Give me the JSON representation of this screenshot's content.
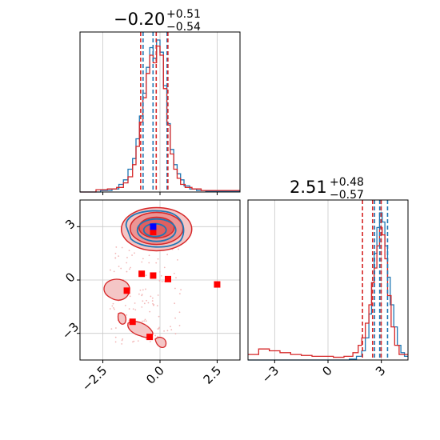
{
  "chart_data": {
    "type": "corner",
    "parameters": [
      "",
      ""
    ],
    "colors": {
      "series_a": "#1f77b4",
      "series_b": "#d62728",
      "marker_blue": "#0000ff",
      "marker_red": "#ff0000"
    },
    "series": [
      {
        "name": "",
        "color": "#1f77b4",
        "param1": {
          "median": -0.2,
          "q_low": -0.74,
          "q_high": 0.31
        },
        "param2": {
          "median": 2.91,
          "q_low": 2.62,
          "q_high": 3.35
        },
        "contour_center": [
          -0.15,
          2.85
        ]
      },
      {
        "name": "",
        "color": "#d62728",
        "param1": {
          "median": -0.2,
          "q_low": -0.74,
          "q_high": 0.31
        },
        "param2": {
          "median": 2.51,
          "q_low": 1.94,
          "q_high": 2.99
        },
        "contour_center": [
          -0.15,
          2.95
        ]
      }
    ],
    "titles": [
      {
        "value": "−0.20",
        "plus": "+0.51",
        "minus": "−0.54"
      },
      {
        "value": "2.51",
        "plus": "+0.48",
        "minus": "−0.57"
      }
    ],
    "x1_range": [
      -3.5,
      3.5
    ],
    "x2_range": [
      -4.5,
      4.5
    ],
    "y2_range": [
      -4.5,
      4.5
    ],
    "x1_ticks": [
      -2.5,
      0.0,
      2.5
    ],
    "x1_tick_labels": [
      "−2.5",
      "0.0",
      "2.5"
    ],
    "x2_ticks": [
      -3,
      0,
      3
    ],
    "x2_tick_labels": [
      "−3",
      "0",
      "3"
    ],
    "y2_ticks": [
      -3,
      0,
      3
    ],
    "y2_tick_labels": [
      "−3",
      "0",
      "3"
    ],
    "grid": true,
    "hist1_blue": [
      [
        -3.5,
        0
      ],
      [
        -2.6,
        0.01
      ],
      [
        -2.1,
        0.02
      ],
      [
        -1.8,
        0.05
      ],
      [
        -1.6,
        0.08
      ],
      [
        -1.4,
        0.15
      ],
      [
        -1.2,
        0.22
      ],
      [
        -1.05,
        0.35
      ],
      [
        -0.9,
        0.5
      ],
      [
        -0.75,
        0.65
      ],
      [
        -0.6,
        0.82
      ],
      [
        -0.45,
        0.95
      ],
      [
        -0.3,
        0.88
      ],
      [
        -0.15,
        1.0
      ],
      [
        0.0,
        0.92
      ],
      [
        0.15,
        0.7
      ],
      [
        0.3,
        0.45
      ],
      [
        0.45,
        0.28
      ],
      [
        0.6,
        0.18
      ],
      [
        0.75,
        0.12
      ],
      [
        0.9,
        0.08
      ],
      [
        1.05,
        0.04
      ],
      [
        1.3,
        0.02
      ],
      [
        1.6,
        0.01
      ],
      [
        2.0,
        0.005
      ],
      [
        3.5,
        0
      ]
    ],
    "hist1_red": [
      [
        -3.5,
        0
      ],
      [
        -2.8,
        0.015
      ],
      [
        -2.3,
        0.02
      ],
      [
        -1.9,
        0.03
      ],
      [
        -1.6,
        0.06
      ],
      [
        -1.4,
        0.1
      ],
      [
        -1.2,
        0.18
      ],
      [
        -1.05,
        0.3
      ],
      [
        -0.9,
        0.46
      ],
      [
        -0.75,
        0.62
      ],
      [
        -0.6,
        0.78
      ],
      [
        -0.45,
        0.9
      ],
      [
        -0.3,
        0.85
      ],
      [
        -0.15,
        0.96
      ],
      [
        0.0,
        0.9
      ],
      [
        0.15,
        0.68
      ],
      [
        0.3,
        0.44
      ],
      [
        0.45,
        0.25
      ],
      [
        0.6,
        0.15
      ],
      [
        0.75,
        0.09
      ],
      [
        0.9,
        0.05
      ],
      [
        1.1,
        0.03
      ],
      [
        1.4,
        0.02
      ],
      [
        1.8,
        0.01
      ],
      [
        2.5,
        0.01
      ],
      [
        3.5,
        0
      ]
    ],
    "hist2_blue": [
      [
        -4.5,
        0
      ],
      [
        1.2,
        0.005
      ],
      [
        1.6,
        0.02
      ],
      [
        1.9,
        0.05
      ],
      [
        2.1,
        0.12
      ],
      [
        2.3,
        0.25
      ],
      [
        2.45,
        0.42
      ],
      [
        2.6,
        0.58
      ],
      [
        2.75,
        0.72
      ],
      [
        2.9,
        0.8
      ],
      [
        3.05,
        0.75
      ],
      [
        3.2,
        0.62
      ],
      [
        3.35,
        0.45
      ],
      [
        3.5,
        0.3
      ],
      [
        3.7,
        0.18
      ],
      [
        3.9,
        0.08
      ],
      [
        4.1,
        0.04
      ],
      [
        4.3,
        0.02
      ],
      [
        4.5,
        0
      ]
    ],
    "hist2_red": [
      [
        -4.5,
        0.03
      ],
      [
        -3.9,
        0.06
      ],
      [
        -3.3,
        0.05
      ],
      [
        -2.7,
        0.04
      ],
      [
        -2.1,
        0.03
      ],
      [
        -1.5,
        0.025
      ],
      [
        -0.9,
        0.02
      ],
      [
        -0.3,
        0.02
      ],
      [
        0.3,
        0.015
      ],
      [
        0.9,
        0.02
      ],
      [
        1.4,
        0.04
      ],
      [
        1.7,
        0.08
      ],
      [
        1.9,
        0.12
      ],
      [
        2.1,
        0.2
      ],
      [
        2.3,
        0.3
      ],
      [
        2.45,
        0.42
      ],
      [
        2.6,
        0.5
      ],
      [
        2.75,
        0.62
      ],
      [
        2.9,
        0.72
      ],
      [
        3.05,
        0.68
      ],
      [
        3.2,
        0.55
      ],
      [
        3.35,
        0.35
      ],
      [
        3.55,
        0.18
      ],
      [
        3.75,
        0.08
      ],
      [
        4.0,
        0.03
      ],
      [
        4.5,
        0
      ]
    ],
    "red_points": [
      [
        -1.45,
        -0.6
      ],
      [
        -0.8,
        0.35
      ],
      [
        -0.3,
        0.25
      ],
      [
        0.35,
        0.05
      ],
      [
        2.5,
        -0.25
      ],
      [
        -1.2,
        -2.35
      ],
      [
        -0.45,
        -3.2
      ]
    ],
    "blue_point": [
      -0.3,
      3.0
    ],
    "red_center_point": [
      -0.3,
      2.7
    ]
  }
}
